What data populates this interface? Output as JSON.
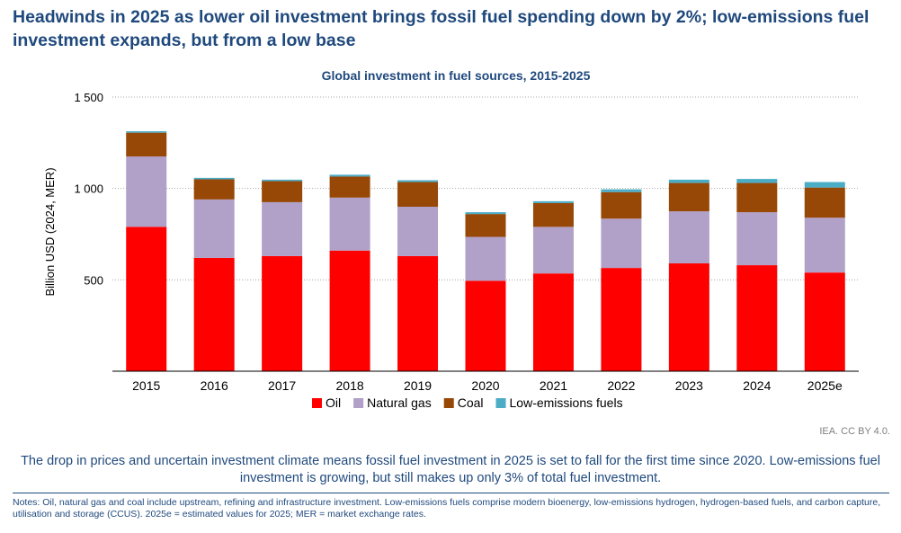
{
  "headline": "Headwinds in 2025 as lower oil investment brings fossil fuel spending down by 2%; low-emissions fuel investment expands, but from a low base",
  "credit": "IEA. CC BY 4.0.",
  "caption": "The drop in prices and uncertain investment climate means fossil fuel investment in 2025 is set to fall for the first time since 2020. Low-emissions fuel investment is growing, but still makes up only 3% of total fuel investment.",
  "notes": "Notes: Oil, natural gas and coal include upstream, refining and infrastructure investment. Low-emissions fuels comprise modern bioenergy, low-emissions hydrogen, hydrogen-based fuels, and carbon capture, utilisation and storage (CCUS). 2025e = estimated values for 2025; MER = market exchange rates.",
  "chart_data": {
    "type": "bar",
    "stacked": true,
    "title": "Global investment in fuel sources, 2015-2025",
    "ylabel": "Billion USD (2024, MER)",
    "xlabel": "",
    "ylim": [
      0,
      1500
    ],
    "yticks": [
      500,
      1000,
      1500
    ],
    "ytick_labels": [
      "500",
      "1 000",
      "1 500"
    ],
    "grid": "horizontal dotted",
    "legend_position": "bottom",
    "categories": [
      "2015",
      "2016",
      "2017",
      "2018",
      "2019",
      "2020",
      "2021",
      "2022",
      "2023",
      "2024",
      "2025e"
    ],
    "series": [
      {
        "name": "Oil",
        "color": "#ff0000",
        "values": [
          790,
          620,
          630,
          660,
          630,
          495,
          535,
          565,
          590,
          580,
          540
        ]
      },
      {
        "name": "Natural gas",
        "color": "#b1a0c7",
        "values": [
          385,
          320,
          295,
          290,
          270,
          240,
          255,
          270,
          285,
          290,
          300
        ]
      },
      {
        "name": "Coal",
        "color": "#974706",
        "values": [
          130,
          110,
          115,
          115,
          135,
          125,
          130,
          145,
          155,
          160,
          165
        ]
      },
      {
        "name": "Low-emissions fuels",
        "color": "#4bacc6",
        "values": [
          8,
          8,
          8,
          10,
          10,
          10,
          10,
          15,
          18,
          22,
          30
        ]
      }
    ]
  }
}
